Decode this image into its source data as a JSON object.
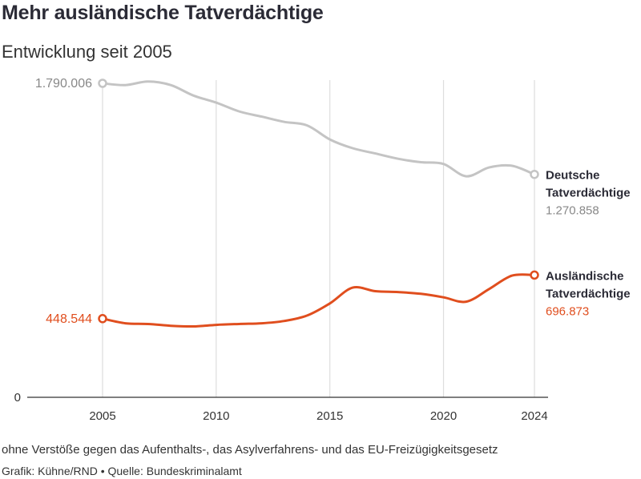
{
  "header": {
    "title": "Mehr ausländische Tatverdächtige",
    "subtitle": "Entwicklung seit 2005"
  },
  "footer": {
    "note": "ohne Verstöße gegen das Aufenthalts-, das Asylverfahrens- und das EU-Freizügigkeitsgesetz",
    "credit": "Grafik: Kühne/RND • Quelle: Bundeskriminalamt"
  },
  "chart_data": {
    "type": "line",
    "title": "Mehr ausländische Tatverdächtige",
    "subtitle": "Entwicklung seit 2005",
    "xlabel": "",
    "ylabel": "",
    "x": [
      2005,
      2006,
      2007,
      2008,
      2009,
      2010,
      2011,
      2012,
      2013,
      2014,
      2015,
      2016,
      2017,
      2018,
      2019,
      2020,
      2021,
      2022,
      2023,
      2024
    ],
    "x_ticks": [
      "2005",
      "2010",
      "2015",
      "2020",
      "2024"
    ],
    "y_tick_label": "0",
    "xlim": [
      2005,
      2024
    ],
    "ylim": [
      0,
      1790006
    ],
    "grid": "vertical",
    "legend": "direct labels at line ends",
    "series": [
      {
        "name_lines": [
          "Deutsche",
          "Tatverdächtige"
        ],
        "color": "#c4c4c4",
        "start_label": "1.790.006",
        "end_label": "1.270.858",
        "values": [
          1790006,
          1780000,
          1800000,
          1780000,
          1720000,
          1680000,
          1630000,
          1600000,
          1570000,
          1550000,
          1470000,
          1420000,
          1390000,
          1360000,
          1340000,
          1330000,
          1260000,
          1310000,
          1320000,
          1270858
        ]
      },
      {
        "name_lines": [
          "Ausländische",
          "Tatverdächtige"
        ],
        "color": "#e04e1e",
        "start_label": "448.544",
        "end_label": "696.873",
        "values": [
          448544,
          422000,
          418000,
          408000,
          404000,
          413000,
          418000,
          422000,
          435000,
          466000,
          535000,
          625000,
          605000,
          600000,
          590000,
          570000,
          545000,
          617000,
          693000,
          696873
        ]
      }
    ]
  },
  "colors": {
    "text_dark": "#2b2b36",
    "text_gray": "#888888",
    "axis": "#333333",
    "grid": "#dddddd"
  }
}
